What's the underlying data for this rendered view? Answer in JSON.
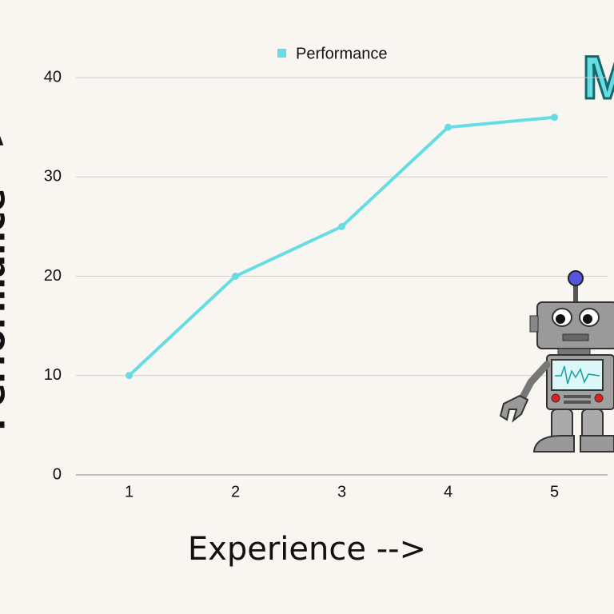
{
  "chart_data": {
    "type": "line",
    "x": [
      1,
      2,
      3,
      4,
      5
    ],
    "xlim": [
      0.5,
      5.5
    ],
    "xticks": [
      1,
      2,
      3,
      4,
      5
    ],
    "ylim": [
      0,
      40
    ],
    "yticks": [
      0,
      10,
      20,
      30,
      40
    ],
    "series": [
      {
        "name": "Performance",
        "color": "#66dde3",
        "values": [
          10,
          20,
          25,
          35,
          36
        ]
      }
    ],
    "x_label": "Experience -->",
    "y_label": "Performance -->",
    "annotation": "M",
    "grid": true,
    "legend": "top"
  }
}
